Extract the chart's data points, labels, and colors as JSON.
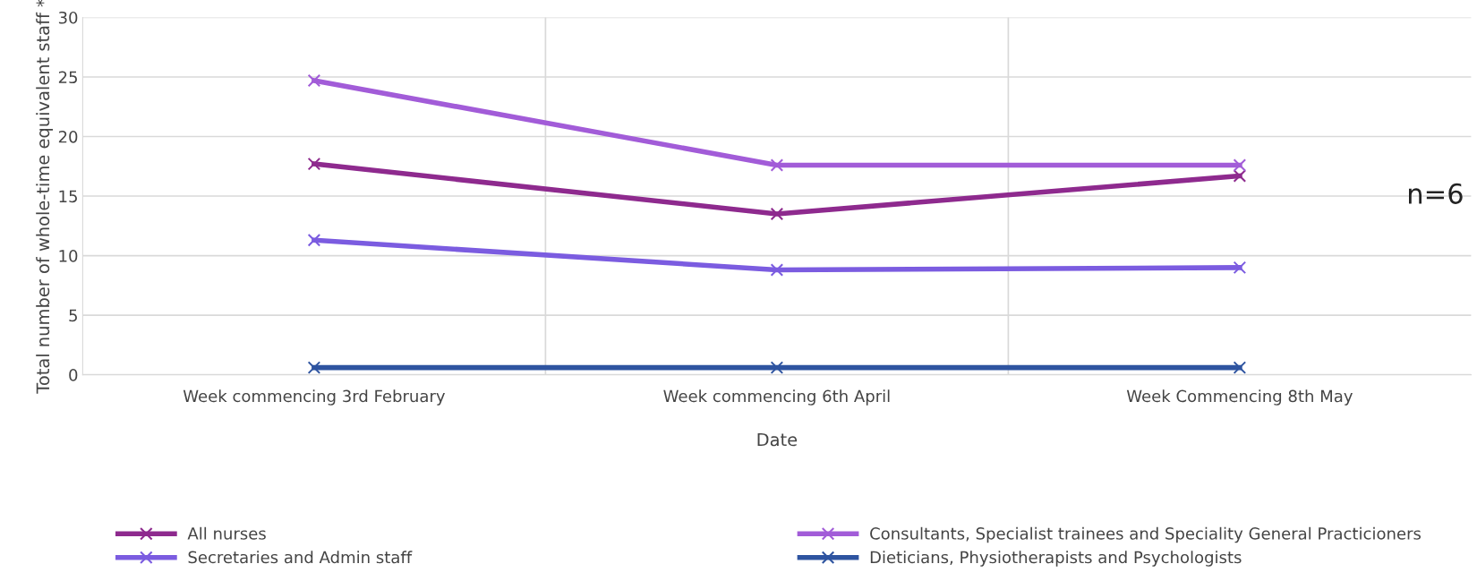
{
  "chart_data": {
    "type": "line",
    "xlabel": "Date",
    "ylabel": "Total number of whole-time equivalent staff *",
    "categories": [
      "Week commencing 3rd February",
      "Week commencing 6th April",
      "Week Commencing 8th May"
    ],
    "series": [
      {
        "name": "All nurses",
        "color": "#8e2a8e",
        "values": [
          17.7,
          13.5,
          16.7
        ]
      },
      {
        "name": "Consultants, Specialist trainees and Speciality General Practicioners",
        "color": "#a25cd8",
        "values": [
          24.7,
          17.6,
          17.6
        ]
      },
      {
        "name": "Secretaries and Admin staff",
        "color": "#7b5ce0",
        "values": [
          11.3,
          8.8,
          9.0
        ]
      },
      {
        "name": "Dieticians, Physiotherapists and Psychologists",
        "color": "#2e54a0",
        "values": [
          0.6,
          0.6,
          0.6
        ]
      }
    ],
    "ylim": [
      0,
      30
    ],
    "yticks": [
      0,
      5,
      10,
      15,
      20,
      25,
      30
    ],
    "grid": true,
    "legend": "bottom",
    "marker": "cross",
    "line_style": "solid",
    "annotations": [
      "n=6"
    ]
  }
}
